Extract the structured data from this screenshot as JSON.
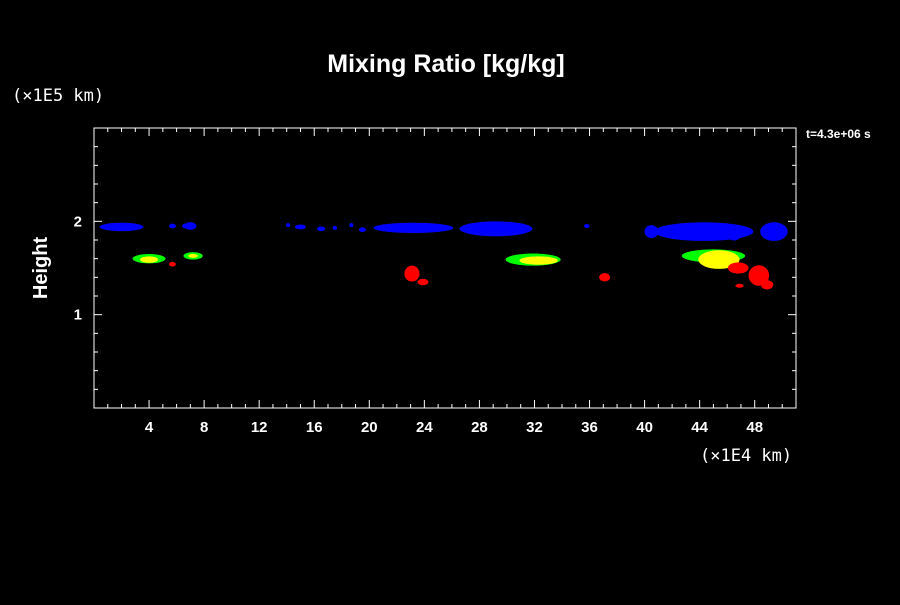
{
  "chart_data": {
    "type": "scatter",
    "title": "Mixing Ratio [kg/kg]",
    "xlabel": "",
    "ylabel": "Height",
    "x_unit": "(×1E4 km)",
    "y_unit": "(×1E5 km)",
    "time_label": "t=4.3e+06 s",
    "xlim": [
      0,
      51
    ],
    "ylim": [
      0,
      3
    ],
    "x_ticks": [
      4,
      8,
      12,
      16,
      20,
      24,
      28,
      32,
      36,
      40,
      44,
      48
    ],
    "y_ticks": [
      1,
      2
    ],
    "grid": false,
    "colors": {
      "background": "#000000",
      "axes": "#ffffff",
      "level_1": "#0000ff",
      "level_2": "#00ff00",
      "level_3": "#ffff00",
      "level_4": "#ff0000"
    },
    "series": [
      {
        "color": "#0000ff",
        "blobs": [
          {
            "x": 2.0,
            "y": 1.94,
            "w": 3.2,
            "h": 0.09
          },
          {
            "x": 5.7,
            "y": 1.95,
            "w": 0.5,
            "h": 0.05
          },
          {
            "x": 6.6,
            "y": 1.95,
            "w": 0.4,
            "h": 0.05
          },
          {
            "x": 7.0,
            "y": 1.95,
            "w": 0.9,
            "h": 0.08
          },
          {
            "x": 14.1,
            "y": 1.96,
            "w": 0.3,
            "h": 0.04
          },
          {
            "x": 15.0,
            "y": 1.94,
            "w": 0.8,
            "h": 0.05
          },
          {
            "x": 16.5,
            "y": 1.92,
            "w": 0.6,
            "h": 0.05
          },
          {
            "x": 17.5,
            "y": 1.93,
            "w": 0.3,
            "h": 0.04
          },
          {
            "x": 18.7,
            "y": 1.96,
            "w": 0.3,
            "h": 0.04
          },
          {
            "x": 19.5,
            "y": 1.91,
            "w": 0.5,
            "h": 0.05
          },
          {
            "x": 23.2,
            "y": 1.93,
            "w": 5.8,
            "h": 0.11
          },
          {
            "x": 29.2,
            "y": 1.92,
            "w": 5.3,
            "h": 0.16
          },
          {
            "x": 35.8,
            "y": 1.95,
            "w": 0.4,
            "h": 0.04
          },
          {
            "x": 40.5,
            "y": 1.89,
            "w": 1.0,
            "h": 0.14
          },
          {
            "x": 44.3,
            "y": 1.89,
            "w": 7.2,
            "h": 0.2
          },
          {
            "x": 46.5,
            "y": 1.83,
            "w": 0.8,
            "h": 0.07
          },
          {
            "x": 49.4,
            "y": 1.89,
            "w": 2.0,
            "h": 0.2
          }
        ]
      },
      {
        "color": "#00ff00",
        "blobs": [
          {
            "x": 4.0,
            "y": 1.6,
            "w": 2.4,
            "h": 0.1
          },
          {
            "x": 7.2,
            "y": 1.63,
            "w": 1.4,
            "h": 0.08
          },
          {
            "x": 31.9,
            "y": 1.59,
            "w": 4.0,
            "h": 0.13
          },
          {
            "x": 45.0,
            "y": 1.63,
            "w": 4.6,
            "h": 0.14
          }
        ]
      },
      {
        "color": "#ffff00",
        "blobs": [
          {
            "x": 4.0,
            "y": 1.59,
            "w": 1.3,
            "h": 0.07
          },
          {
            "x": 7.2,
            "y": 1.63,
            "w": 0.7,
            "h": 0.04
          },
          {
            "x": 32.3,
            "y": 1.58,
            "w": 2.8,
            "h": 0.09
          },
          {
            "x": 45.4,
            "y": 1.59,
            "w": 3.0,
            "h": 0.2
          }
        ]
      },
      {
        "color": "#ff0000",
        "blobs": [
          {
            "x": 5.7,
            "y": 1.54,
            "w": 0.5,
            "h": 0.05
          },
          {
            "x": 23.1,
            "y": 1.44,
            "w": 1.1,
            "h": 0.17
          },
          {
            "x": 23.9,
            "y": 1.35,
            "w": 0.8,
            "h": 0.07
          },
          {
            "x": 37.1,
            "y": 1.4,
            "w": 0.8,
            "h": 0.09
          },
          {
            "x": 46.8,
            "y": 1.5,
            "w": 1.5,
            "h": 0.12
          },
          {
            "x": 48.3,
            "y": 1.42,
            "w": 1.5,
            "h": 0.22
          },
          {
            "x": 48.9,
            "y": 1.32,
            "w": 0.9,
            "h": 0.1
          },
          {
            "x": 46.9,
            "y": 1.31,
            "w": 0.6,
            "h": 0.04
          }
        ]
      }
    ]
  }
}
